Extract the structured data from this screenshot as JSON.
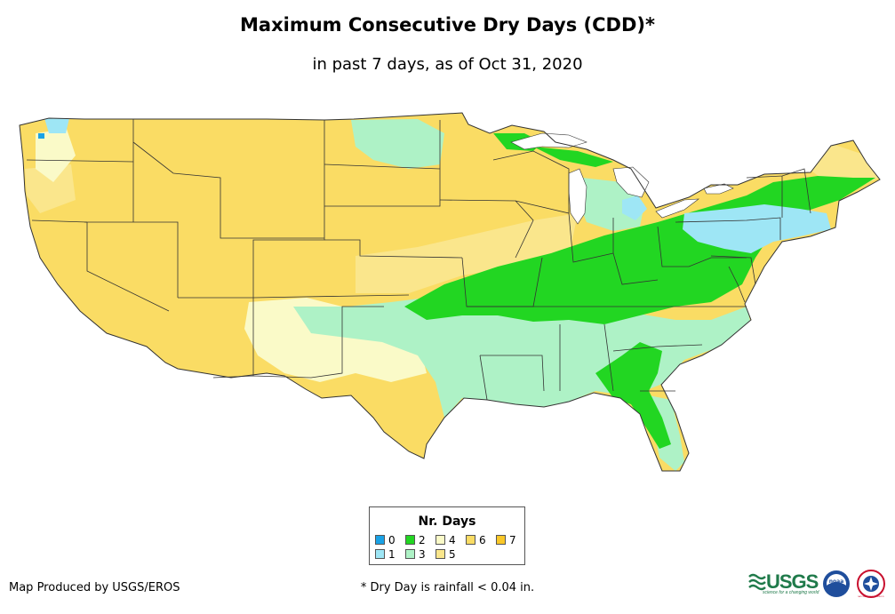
{
  "title": "Maximum Consecutive Dry Days (CDD)*",
  "subtitle": "in past 7 days, as of Oct 31, 2020",
  "legend": {
    "title": "Nr. Days",
    "items": [
      {
        "label": "0",
        "color": "#1aa2e6"
      },
      {
        "label": "1",
        "color": "#9ee6f5"
      },
      {
        "label": "2",
        "color": "#22d622"
      },
      {
        "label": "3",
        "color": "#aef2c6"
      },
      {
        "label": "4",
        "color": "#fafac8"
      },
      {
        "label": "5",
        "color": "#fae68c"
      },
      {
        "label": "6",
        "color": "#fadc64"
      },
      {
        "label": "7",
        "color": "#fac828"
      }
    ]
  },
  "credit": "Map Produced by USGS/EROS",
  "footnote": "* Dry Day is rainfall < 0.04 in.",
  "logos": {
    "usgs_word": "USGS",
    "usgs_tagline": "science for a changing world",
    "noaa": "noaa",
    "nws": "NATIONAL WEATHER SERVICE"
  }
}
